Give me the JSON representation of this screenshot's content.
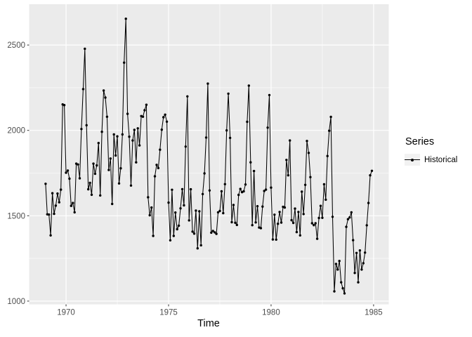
{
  "chart_data": {
    "type": "line",
    "title": "",
    "xlabel": "Time",
    "ylabel": "",
    "legend_title": "Series",
    "legend_position": "right",
    "grid": true,
    "series": [
      {
        "name": "Historical",
        "color": "#000000",
        "marker": "point"
      }
    ],
    "x_start_year": 1969,
    "points_per_year": 12,
    "xlim": [
      1968.2,
      1985.74
    ],
    "ylim": [
      981,
      2739
    ],
    "x_tick_values": [
      1970,
      1975,
      1980,
      1985
    ],
    "x_tick_labels": [
      "1970",
      "1975",
      "1980",
      "1985"
    ],
    "x_minor_gridlines": [
      1972.5,
      1977.5,
      1982.5
    ],
    "y_tick_values": [
      1000,
      1500,
      2000,
      2500
    ],
    "y_tick_labels": [
      "1000",
      "1500",
      "2000",
      "2500"
    ],
    "y_minor_gridlines": [
      1250,
      1750,
      2250
    ],
    "colors": {
      "figure_background": "#FFFFFF",
      "panel_background": "#EBEBEB",
      "gridline": "#FFFFFF",
      "axis_text": "#4D4D4D",
      "axis_title": "#000000",
      "tick_mark": "#333333",
      "legend_key_background": "#F2F2F2",
      "series": "#000000"
    },
    "values_by_year": [
      {
        "year": 1969,
        "values": [
          1687,
          1508,
          1507,
          1385,
          1632,
          1511,
          1559,
          1630,
          1579,
          1653,
          2152,
          2148
        ]
      },
      {
        "year": 1970,
        "values": [
          1752,
          1765,
          1717,
          1558,
          1575,
          1520,
          1805,
          1800,
          1719,
          2008,
          2242,
          2478
        ]
      },
      {
        "year": 1971,
        "values": [
          2030,
          1655,
          1693,
          1623,
          1805,
          1746,
          1795,
          1926,
          1619,
          1992,
          2233,
          2192
        ]
      },
      {
        "year": 1972,
        "values": [
          2080,
          1768,
          1835,
          1569,
          1976,
          1853,
          1965,
          1689,
          1778,
          1976,
          2397,
          2654
        ]
      },
      {
        "year": 1973,
        "values": [
          2097,
          1963,
          1677,
          1941,
          2003,
          1813,
          2012,
          1912,
          2084,
          2080,
          2118,
          2150
        ]
      },
      {
        "year": 1974,
        "values": [
          1608,
          1503,
          1548,
          1382,
          1731,
          1798,
          1779,
          1887,
          2004,
          2077,
          2092,
          2051
        ]
      },
      {
        "year": 1975,
        "values": [
          1577,
          1356,
          1652,
          1382,
          1519,
          1421,
          1442,
          1543,
          1656,
          1561,
          1905,
          2199
        ]
      },
      {
        "year": 1976,
        "values": [
          1473,
          1655,
          1407,
          1395,
          1530,
          1309,
          1526,
          1327,
          1627,
          1748,
          1958,
          2274
        ]
      },
      {
        "year": 1977,
        "values": [
          1648,
          1401,
          1411,
          1403,
          1394,
          1520,
          1528,
          1643,
          1515,
          1685,
          2000,
          2215
        ]
      },
      {
        "year": 1978,
        "values": [
          1956,
          1462,
          1563,
          1459,
          1446,
          1622,
          1657,
          1638,
          1643,
          1683,
          2050,
          2262
        ]
      },
      {
        "year": 1979,
        "values": [
          1813,
          1445,
          1762,
          1461,
          1556,
          1431,
          1427,
          1554,
          1645,
          1653,
          2016,
          2207
        ]
      },
      {
        "year": 1980,
        "values": [
          1665,
          1361,
          1506,
          1360,
          1453,
          1522,
          1460,
          1552,
          1548,
          1827,
          1737,
          1941
        ]
      },
      {
        "year": 1981,
        "values": [
          1474,
          1458,
          1542,
          1404,
          1522,
          1385,
          1641,
          1510,
          1681,
          1938,
          1868,
          1726
        ]
      },
      {
        "year": 1982,
        "values": [
          1456,
          1445,
          1456,
          1365,
          1487,
          1558,
          1488,
          1684,
          1594,
          1850,
          1998,
          2079
        ]
      },
      {
        "year": 1983,
        "values": [
          1494,
          1057,
          1218,
          1185,
          1235,
          1110,
          1075,
          1045,
          1435,
          1480,
          1490,
          1520
        ]
      },
      {
        "year": 1984,
        "values": [
          1357,
          1165,
          1282,
          1110,
          1297,
          1185,
          1222,
          1284,
          1444,
          1575,
          1737,
          1763
        ]
      }
    ]
  }
}
